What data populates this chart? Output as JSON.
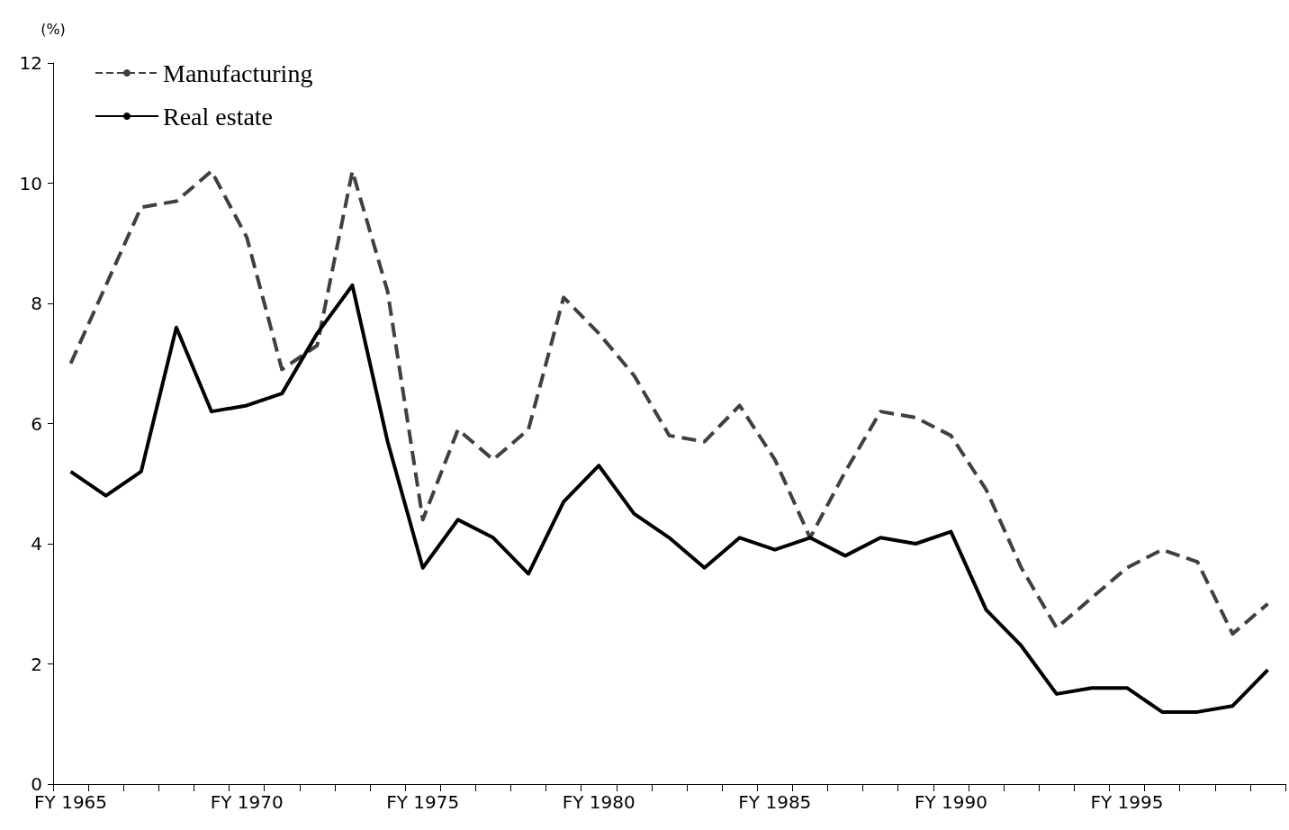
{
  "chart_data": {
    "type": "line",
    "ylabel": "(%)",
    "categories": [
      "FY 1965",
      null,
      null,
      null,
      null,
      "FY 1970",
      null,
      null,
      null,
      null,
      "FY 1975",
      null,
      null,
      null,
      null,
      "FY 1980",
      null,
      null,
      null,
      null,
      "FY 1985",
      null,
      null,
      null,
      null,
      "FY 1990",
      null,
      null,
      null,
      null,
      "FY 1995",
      null,
      null,
      null,
      null
    ],
    "series": [
      {
        "name": "Manufacturing",
        "color": "#404040",
        "line_style": "dashed",
        "values": [
          7.0,
          8.3,
          9.6,
          9.7,
          10.2,
          9.1,
          6.9,
          7.3,
          10.2,
          8.2,
          4.4,
          5.9,
          5.4,
          5.9,
          8.1,
          7.5,
          6.8,
          5.8,
          5.7,
          6.3,
          5.4,
          4.1,
          5.2,
          6.2,
          6.1,
          5.8,
          4.9,
          3.6,
          2.6,
          3.1,
          3.6,
          3.9,
          3.7,
          2.5,
          3.0
        ]
      },
      {
        "name": "Real estate",
        "color": "#000000",
        "line_style": "solid",
        "values": [
          5.2,
          4.8,
          5.2,
          7.6,
          6.2,
          6.3,
          6.5,
          7.5,
          8.3,
          5.7,
          3.6,
          4.4,
          4.1,
          3.5,
          4.7,
          5.3,
          4.5,
          4.1,
          3.6,
          4.1,
          3.9,
          4.1,
          3.8,
          4.1,
          4.0,
          4.2,
          2.9,
          2.3,
          1.5,
          1.6,
          1.6,
          1.2,
          1.2,
          1.3,
          1.9
        ]
      }
    ],
    "ylim": [
      0,
      12
    ],
    "yticks": [
      0,
      2,
      4,
      6,
      8,
      10,
      12
    ],
    "grid": false,
    "legend": "top left",
    "marker": "none"
  }
}
